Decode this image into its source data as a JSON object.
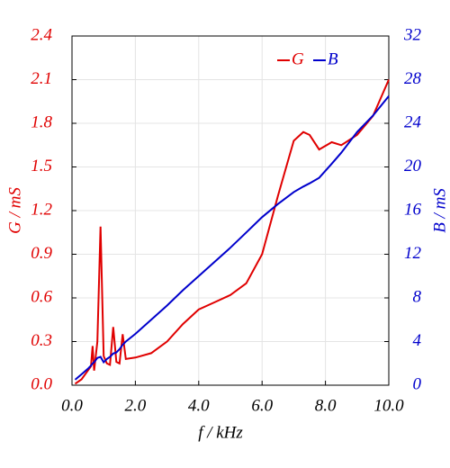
{
  "chart_data": {
    "type": "line",
    "xlabel": "f / kHz",
    "ylabel": "G / mS",
    "y2label": "B / mS",
    "x": [
      0.1,
      0.3,
      0.5,
      0.6,
      0.65,
      0.7,
      0.8,
      0.9,
      1.0,
      1.1,
      1.2,
      1.3,
      1.4,
      1.5,
      1.6,
      1.7,
      2.0,
      2.5,
      3.0,
      3.5,
      4.0,
      4.5,
      5.0,
      5.5,
      6.0,
      6.5,
      7.0,
      7.3,
      7.5,
      7.8,
      8.2,
      8.5,
      9.0,
      9.5,
      10.0
    ],
    "series": [
      {
        "name": "G",
        "color": "#e00000",
        "axis": "y",
        "values": [
          0.01,
          0.04,
          0.1,
          0.13,
          0.27,
          0.1,
          0.3,
          1.09,
          0.2,
          0.15,
          0.14,
          0.4,
          0.16,
          0.15,
          0.35,
          0.18,
          0.19,
          0.22,
          0.3,
          0.42,
          0.52,
          0.57,
          0.62,
          0.7,
          0.9,
          1.3,
          1.68,
          1.74,
          1.72,
          1.62,
          1.67,
          1.65,
          1.72,
          1.85,
          2.1
        ]
      },
      {
        "name": "B",
        "color": "#0000cc",
        "axis": "y2",
        "values": [
          0.5,
          1.0,
          1.5,
          1.8,
          2.0,
          2.1,
          2.5,
          2.6,
          2.1,
          2.4,
          2.6,
          2.9,
          3.0,
          3.3,
          3.7,
          4.0,
          4.7,
          6.0,
          7.3,
          8.7,
          10.0,
          11.3,
          12.6,
          14.0,
          15.4,
          16.6,
          17.7,
          18.2,
          18.5,
          19.0,
          20.3,
          21.3,
          23.2,
          24.7,
          26.5
        ]
      }
    ],
    "xlim": [
      0,
      10
    ],
    "xticks": [
      {
        "value": 0,
        "label": "0.0"
      },
      {
        "value": 2,
        "label": "2.0"
      },
      {
        "value": 4,
        "label": "4.0"
      },
      {
        "value": 6,
        "label": "6.0"
      },
      {
        "value": 8,
        "label": "8.0"
      },
      {
        "value": 10,
        "label": "10.0"
      }
    ],
    "ylim": [
      0,
      2.4
    ],
    "yticks": [
      {
        "value": 0,
        "label": "0.0"
      },
      {
        "value": 0.3,
        "label": "0.3"
      },
      {
        "value": 0.6,
        "label": "0.6"
      },
      {
        "value": 0.9,
        "label": "0.9"
      },
      {
        "value": 1.2,
        "label": "1.2"
      },
      {
        "value": 1.5,
        "label": "1.5"
      },
      {
        "value": 1.8,
        "label": "1.8"
      },
      {
        "value": 2.1,
        "label": "2.1"
      },
      {
        "value": 2.4,
        "label": "2.4"
      }
    ],
    "y2lim": [
      0,
      32
    ],
    "y2ticks": [
      0,
      4,
      8,
      12,
      16,
      20,
      24,
      28,
      32
    ],
    "grid": true,
    "legend": "upper right"
  }
}
